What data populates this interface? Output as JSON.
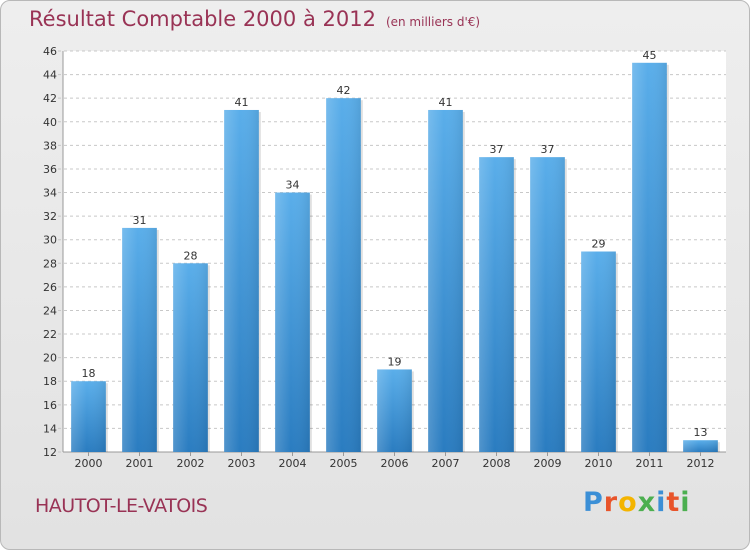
{
  "header": {
    "title": "Résultat Comptable 2000 à 2012",
    "subtitle": "(en milliers d'€)"
  },
  "footer": {
    "commune": "HAUTOT-LE-VATOIS",
    "logo_letters": [
      "P",
      "r",
      "o",
      "x",
      "i",
      "t",
      "i"
    ],
    "logo_colors": [
      "#3b8fd6",
      "#e8542a",
      "#f4b400",
      "#4caf50",
      "#3b8fd6",
      "#e8542a",
      "#4caf50"
    ]
  },
  "chart_data": {
    "type": "bar",
    "title": "Résultat Comptable 2000 à 2012",
    "categories": [
      "2000",
      "2001",
      "2002",
      "2003",
      "2004",
      "2005",
      "2006",
      "2007",
      "2008",
      "2009",
      "2010",
      "2011",
      "2012"
    ],
    "values": [
      18,
      31,
      28,
      41,
      34,
      42,
      19,
      41,
      37,
      37,
      29,
      45,
      13
    ],
    "ylim": [
      12,
      46
    ],
    "yticks": [
      12,
      14,
      16,
      18,
      20,
      22,
      24,
      26,
      28,
      30,
      32,
      34,
      36,
      38,
      40,
      42,
      44,
      46
    ],
    "grid": true,
    "bar_color": "#4a9fe0",
    "data_labels": true
  }
}
